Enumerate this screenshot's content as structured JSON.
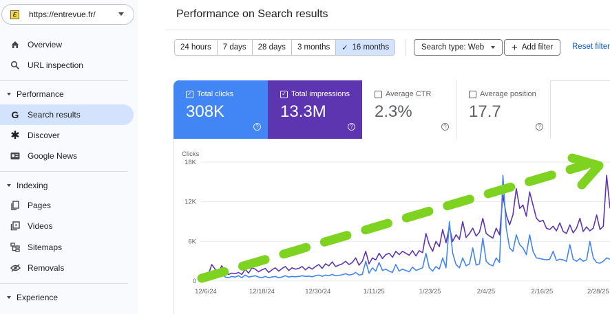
{
  "property": {
    "url": "https://entrevue.fr/",
    "logo_letter": "E"
  },
  "sidebar": {
    "items": [
      {
        "label": "Overview",
        "icon": "home-icon"
      },
      {
        "label": "URL inspection",
        "icon": "search-icon"
      },
      {
        "label": "Search results",
        "icon": "google-g-icon"
      },
      {
        "label": "Discover",
        "icon": "asterisk-icon"
      },
      {
        "label": "Google News",
        "icon": "news-icon"
      },
      {
        "label": "Pages",
        "icon": "pages-icon"
      },
      {
        "label": "Videos",
        "icon": "videos-icon"
      },
      {
        "label": "Sitemaps",
        "icon": "sitemap-icon"
      },
      {
        "label": "Removals",
        "icon": "removals-icon"
      }
    ],
    "sections": {
      "performance": "Performance",
      "indexing": "Indexing",
      "experience": "Experience"
    }
  },
  "header": {
    "title": "Performance on Search results"
  },
  "date_ranges": [
    "24 hours",
    "7 days",
    "28 days",
    "3 months",
    "16 months"
  ],
  "selected_range": "16 months",
  "filters": {
    "search_type": "Search type: Web",
    "add_filter": "Add filter",
    "reset": "Reset filters"
  },
  "metrics": {
    "clicks": {
      "label": "Total clicks",
      "value": "308K",
      "color": "#4285f4",
      "checked": true
    },
    "impressions": {
      "label": "Total impressions",
      "value": "13.3M",
      "color": "#5e35b1",
      "checked": true
    },
    "ctr": {
      "label": "Average CTR",
      "value": "2.3%",
      "checked": false
    },
    "position": {
      "label": "Average position",
      "value": "17.7",
      "checked": false
    }
  },
  "chart_data": {
    "type": "line",
    "ylabel": "Clicks",
    "ylim": [
      0,
      18000
    ],
    "yticks": [
      "0",
      "6K",
      "12K",
      "18K"
    ],
    "x_ticks": [
      "12/6/24",
      "12/18/24",
      "12/30/24",
      "1/11/25",
      "1/23/25",
      "2/4/25",
      "2/16/25",
      "2/28/25"
    ],
    "grid": true,
    "series": [
      {
        "name": "Total impressions",
        "color": "#5e35b1",
        "values": [
          200,
          800,
          1000,
          2500,
          1800,
          1400,
          2300,
          1500,
          1000,
          1200,
          1100,
          1300,
          1000,
          1800,
          1200,
          2000,
          1800,
          1400,
          1700,
          1900,
          1300,
          1700,
          2000,
          1500,
          1900,
          2200,
          1600,
          2000,
          1800,
          1900,
          2200,
          1700,
          2100,
          1800,
          2200,
          2500,
          1900,
          2600,
          2300,
          2900,
          2200,
          2400,
          2600,
          3000,
          2500,
          2800,
          3500,
          2400,
          3000,
          4500,
          2600,
          3500,
          3200,
          4200,
          3400,
          4000,
          4200,
          3600,
          4500,
          4000,
          4500,
          4200,
          3900,
          4600,
          3800,
          4600,
          4300,
          7200,
          5500,
          4500,
          6000,
          5200,
          7800,
          5800,
          8200,
          6000,
          7000,
          6300,
          9000,
          6600,
          7200,
          8000,
          6800,
          7400,
          9500,
          7200,
          6800,
          6500,
          8000,
          7000,
          13000,
          10000,
          8500,
          10000,
          14000,
          11000,
          11500,
          9800,
          13500,
          11500,
          9500,
          9000,
          9200,
          8000,
          7800,
          8300,
          7600,
          8800,
          7500,
          7200,
          8500,
          7300,
          8000,
          9500,
          7500,
          8200,
          7600,
          8000,
          10000,
          7800,
          8300,
          16000,
          11000
        ]
      },
      {
        "name": "Total clicks",
        "color": "#4285f4",
        "values": [
          150,
          400,
          900,
          1500,
          1000,
          700,
          1500,
          600,
          500,
          700,
          600,
          800,
          500,
          900,
          600,
          700,
          800,
          600,
          500,
          700,
          500,
          600,
          700,
          500,
          600,
          800,
          600,
          700,
          650,
          700,
          800,
          700,
          750,
          650,
          800,
          900,
          700,
          900,
          800,
          1000,
          800,
          850,
          950,
          1100,
          900,
          1000,
          1300,
          900,
          1000,
          3000,
          1200,
          2000,
          1500,
          2800,
          1600,
          1800,
          1500,
          1300,
          2500,
          1500,
          1800,
          1600,
          1400,
          2100,
          1600,
          1800,
          2000,
          4200,
          2000,
          1500,
          2200,
          1800,
          3500,
          2000,
          9000,
          4200,
          2500,
          2000,
          3500,
          2300,
          2600,
          5000,
          2400,
          2600,
          6500,
          3000,
          2500,
          2300,
          3500,
          2800,
          16000,
          8000,
          5000,
          4500,
          7000,
          5500,
          5000,
          4000,
          7000,
          4500,
          3500,
          3400,
          3300,
          3200,
          3300,
          4500,
          3100,
          3300,
          3200,
          3000,
          5500,
          3300,
          3000,
          3400,
          3000,
          3200,
          6000,
          3500,
          2800,
          2700,
          3000,
          3500,
          3300
        ]
      }
    ]
  }
}
